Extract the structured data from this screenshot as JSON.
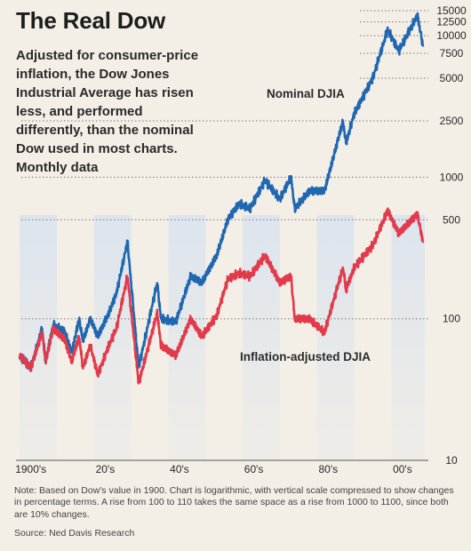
{
  "chart_data": {
    "type": "line",
    "title": "The Real Dow",
    "subtitle": "Adjusted for consumer-price\ninflation, the Dow Jones\nIndustrial Average has risen\nless, and performed\ndifferently, than the nominal\nDow used in most charts.\nMonthly data",
    "xlabel": "",
    "ylabel": "",
    "x_tick_labels": [
      "1900's",
      "20's",
      "40's",
      "60's",
      "80's",
      "00's"
    ],
    "x_tick_years": [
      1900,
      1920,
      1940,
      1960,
      1980,
      2000
    ],
    "y_scale": "log",
    "y_ticks": [
      10,
      100,
      500,
      1000,
      2500,
      5000,
      7500,
      10000,
      12500,
      15000
    ],
    "y_tick_labels": [
      "10",
      "100",
      "500",
      "1000",
      "2500",
      "5000",
      "7500",
      "10000",
      "12500",
      "15000"
    ],
    "xlim": [
      1899,
      2009
    ],
    "ylim": [
      10,
      15000
    ],
    "shaded_decades": [
      [
        1900,
        1910
      ],
      [
        1920,
        1930
      ],
      [
        1940,
        1950
      ],
      [
        1960,
        1970
      ],
      [
        1980,
        1990
      ],
      [
        2000,
        2009
      ]
    ],
    "series": [
      {
        "name": "Nominal DJIA",
        "color": "#1f67b0",
        "x": [
          1900,
          1903,
          1906,
          1907,
          1909,
          1912,
          1914,
          1916,
          1917,
          1919,
          1921,
          1924,
          1926,
          1929,
          1932,
          1937,
          1938,
          1942,
          1946,
          1949,
          1953,
          1956,
          1959,
          1962,
          1966,
          1970,
          1973,
          1974,
          1978,
          1982,
          1987,
          1987.8,
          1990,
          1995,
          1999,
          2002,
          2007,
          2008.5
        ],
        "values": [
          55,
          45,
          85,
          50,
          90,
          82,
          58,
          100,
          70,
          100,
          75,
          110,
          150,
          350,
          45,
          180,
          100,
          95,
          200,
          180,
          280,
          500,
          650,
          600,
          950,
          700,
          1000,
          600,
          800,
          800,
          2500,
          1750,
          2800,
          5000,
          11000,
          7800,
          13900,
          8500
        ]
      },
      {
        "name": "Inflation-adjusted DJIA",
        "color": "#e23a4a",
        "x": [
          1900,
          1903,
          1906,
          1907,
          1909,
          1912,
          1914,
          1916,
          1917,
          1919,
          1921,
          1924,
          1926,
          1929,
          1932,
          1937,
          1938,
          1942,
          1946,
          1949,
          1953,
          1956,
          1959,
          1962,
          1966,
          1970,
          1973,
          1974,
          1978,
          1982,
          1987,
          1987.8,
          1990,
          1995,
          1999,
          2002,
          2007,
          2008.5
        ],
        "values": [
          55,
          45,
          80,
          50,
          85,
          72,
          50,
          75,
          45,
          65,
          40,
          65,
          85,
          200,
          35,
          110,
          65,
          55,
          100,
          75,
          105,
          190,
          210,
          200,
          280,
          180,
          200,
          100,
          100,
          80,
          230,
          160,
          230,
          330,
          580,
          400,
          550,
          350
        ]
      }
    ]
  },
  "labels": {
    "nominal": "Nominal DJIA",
    "adjusted": "Inflation-adjusted DJIA"
  },
  "colors": {
    "background": "#f3eee6",
    "band": "#dbe4ee",
    "nominal": "#1f67b0",
    "adjusted": "#e23a4a"
  },
  "note": "Note: Based on Dow's value in 1900. Chart is logarithmic, with vertical scale compressed to show changes in percentage terms. A rise from 100 to 110 takes the same space as a rise from 1000 to 1100, since both are 10% changes.",
  "source": "Source: Ned Davis Research"
}
